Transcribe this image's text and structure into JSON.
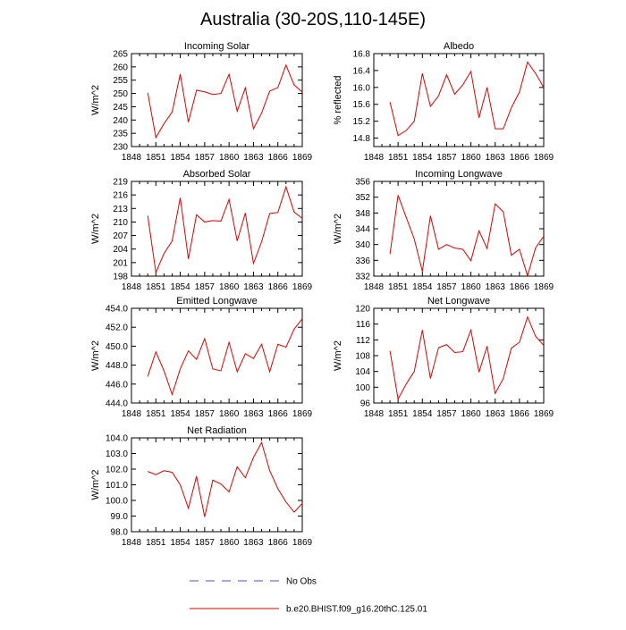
{
  "figure": {
    "title": "Australia (30-20S,110-145E)"
  },
  "legend": {
    "entries": [
      {
        "label": "No Obs",
        "color": "#5050c8",
        "dash": true
      },
      {
        "label": "b.e20.BHIST.f09_g16.20thC.125.01",
        "color": "#e00000",
        "dash": false
      }
    ]
  },
  "chart_data": [
    {
      "type": "line",
      "title": "Incoming Solar",
      "ylabel": "W/m^2",
      "xlim": [
        1848,
        1869
      ],
      "xticks": [
        1848,
        1851,
        1854,
        1857,
        1860,
        1863,
        1866,
        1869
      ],
      "ylim": [
        230,
        265
      ],
      "yticks": [
        230,
        235,
        240,
        245,
        250,
        255,
        260,
        265
      ],
      "ytick_labels": [
        "230",
        "235",
        "240",
        "245",
        "250",
        "255",
        "260",
        "265"
      ],
      "series": [
        {
          "color": "#e00000",
          "x": [
            1850,
            1851,
            1852,
            1853,
            1854,
            1855,
            1856,
            1857,
            1858,
            1859,
            1860,
            1861,
            1862,
            1863,
            1864,
            1865,
            1866,
            1867,
            1868,
            1869
          ],
          "y": [
            250.3,
            233.4,
            238.6,
            243.0,
            257.3,
            239.2,
            251.2,
            250.6,
            249.6,
            250.0,
            257.2,
            243.3,
            252.1,
            236.7,
            242.6,
            250.9,
            252.2,
            260.7,
            253.2,
            250.5
          ]
        }
      ]
    },
    {
      "type": "line",
      "title": "Albedo",
      "ylabel": "% reflected",
      "xlim": [
        1848,
        1869
      ],
      "xticks": [
        1848,
        1851,
        1854,
        1857,
        1860,
        1863,
        1866,
        1869
      ],
      "ylim": [
        14.6,
        16.8
      ],
      "yticks": [
        14.8,
        15.2,
        15.6,
        16.0,
        16.4,
        16.8
      ],
      "ytick_labels": [
        "14.8",
        "15.2",
        "15.6",
        "16.0",
        "16.4",
        "16.8"
      ],
      "series": [
        {
          "color": "#e00000",
          "x": [
            1850,
            1851,
            1852,
            1853,
            1854,
            1855,
            1856,
            1857,
            1858,
            1859,
            1860,
            1861,
            1862,
            1863,
            1864,
            1865,
            1866,
            1867,
            1868,
            1869
          ],
          "y": [
            15.65,
            14.86,
            14.98,
            15.2,
            16.33,
            15.55,
            15.8,
            16.3,
            15.84,
            16.06,
            16.38,
            15.28,
            16.0,
            15.02,
            15.02,
            15.52,
            15.89,
            16.6,
            16.33,
            16.0
          ]
        }
      ]
    },
    {
      "type": "line",
      "title": "Absorbed Solar",
      "ylabel": "W/m^2",
      "xlim": [
        1848,
        1869
      ],
      "xticks": [
        1848,
        1851,
        1854,
        1857,
        1860,
        1863,
        1866,
        1869
      ],
      "ylim": [
        198,
        219
      ],
      "yticks": [
        198,
        201,
        204,
        207,
        210,
        213,
        216,
        219
      ],
      "ytick_labels": [
        "198",
        "201",
        "204",
        "207",
        "210",
        "213",
        "216",
        "219"
      ],
      "series": [
        {
          "color": "#e00000",
          "x": [
            1850,
            1851,
            1852,
            1853,
            1854,
            1855,
            1856,
            1857,
            1858,
            1859,
            1860,
            1861,
            1862,
            1863,
            1864,
            1865,
            1866,
            1867,
            1868,
            1869
          ],
          "y": [
            211.4,
            198.8,
            203.0,
            205.8,
            215.4,
            201.8,
            211.6,
            210.0,
            210.3,
            210.2,
            215.0,
            205.8,
            212.0,
            200.8,
            205.6,
            211.9,
            212.1,
            217.8,
            212.2,
            210.8
          ]
        }
      ]
    },
    {
      "type": "line",
      "title": "Incoming Longwave",
      "ylabel": "W/m^2",
      "xlim": [
        1848,
        1869
      ],
      "xticks": [
        1848,
        1851,
        1854,
        1857,
        1860,
        1863,
        1866,
        1869
      ],
      "ylim": [
        332,
        356
      ],
      "yticks": [
        332,
        336,
        340,
        344,
        348,
        352,
        356
      ],
      "ytick_labels": [
        "332",
        "336",
        "340",
        "344",
        "348",
        "352",
        "356"
      ],
      "series": [
        {
          "color": "#e00000",
          "x": [
            1850,
            1851,
            1852,
            1853,
            1854,
            1855,
            1856,
            1857,
            1858,
            1859,
            1860,
            1861,
            1862,
            1863,
            1864,
            1865,
            1866,
            1867,
            1868,
            1869
          ],
          "y": [
            337.6,
            352.5,
            346.9,
            341.4,
            333.2,
            347.3,
            338.8,
            340.0,
            339.1,
            338.8,
            335.9,
            343.5,
            339.0,
            350.3,
            348.3,
            337.3,
            338.8,
            332.1,
            339.2,
            342.1
          ]
        }
      ]
    },
    {
      "type": "line",
      "title": "Emitted Longwave",
      "ylabel": "W/m^2",
      "xlim": [
        1848,
        1869
      ],
      "xticks": [
        1848,
        1851,
        1854,
        1857,
        1860,
        1863,
        1866,
        1869
      ],
      "ylim": [
        444.0,
        454.0
      ],
      "yticks": [
        444.0,
        446.0,
        448.0,
        450.0,
        452.0,
        454.0
      ],
      "ytick_labels": [
        "444.0",
        "446.0",
        "448.0",
        "450.0",
        "452.0",
        "454.0"
      ],
      "series": [
        {
          "color": "#e00000",
          "x": [
            1850,
            1851,
            1852,
            1853,
            1854,
            1855,
            1856,
            1857,
            1858,
            1859,
            1860,
            1861,
            1862,
            1863,
            1864,
            1865,
            1866,
            1867,
            1868,
            1869
          ],
          "y": [
            446.8,
            449.4,
            447.4,
            444.9,
            447.6,
            449.5,
            448.6,
            450.8,
            447.6,
            447.4,
            450.4,
            447.3,
            449.2,
            448.7,
            450.2,
            447.3,
            450.2,
            449.9,
            451.8,
            452.9
          ]
        }
      ]
    },
    {
      "type": "line",
      "title": "Net Longwave",
      "ylabel": "W/m^2",
      "xlim": [
        1848,
        1869
      ],
      "xticks": [
        1848,
        1851,
        1854,
        1857,
        1860,
        1863,
        1866,
        1869
      ],
      "ylim": [
        96,
        120
      ],
      "yticks": [
        96,
        100,
        104,
        108,
        112,
        116,
        120
      ],
      "ytick_labels": [
        "96",
        "100",
        "104",
        "108",
        "112",
        "116",
        "120"
      ],
      "series": [
        {
          "color": "#e00000",
          "x": [
            1850,
            1851,
            1852,
            1853,
            1854,
            1855,
            1856,
            1857,
            1858,
            1859,
            1860,
            1861,
            1862,
            1863,
            1864,
            1865,
            1866,
            1867,
            1868,
            1869
          ],
          "y": [
            109.2,
            97.0,
            100.8,
            104.0,
            114.5,
            102.2,
            110.0,
            110.8,
            108.8,
            109.0,
            114.5,
            103.8,
            110.4,
            98.4,
            102.2,
            109.9,
            111.4,
            117.8,
            112.9,
            110.6
          ]
        }
      ]
    },
    {
      "type": "line",
      "title": "Net Radiation",
      "ylabel": "W/m^2",
      "xlim": [
        1848,
        1869
      ],
      "xticks": [
        1848,
        1851,
        1854,
        1857,
        1860,
        1863,
        1866,
        1869
      ],
      "ylim": [
        98.0,
        104.0
      ],
      "yticks": [
        98.0,
        99.0,
        100.0,
        101.0,
        102.0,
        103.0,
        104.0
      ],
      "ytick_labels": [
        "98.0",
        "99.0",
        "100.0",
        "101.0",
        "102.0",
        "103.0",
        "104.0"
      ],
      "series": [
        {
          "color": "#e00000",
          "x": [
            1850,
            1851,
            1852,
            1853,
            1854,
            1855,
            1856,
            1857,
            1858,
            1859,
            1860,
            1861,
            1862,
            1863,
            1864,
            1865,
            1866,
            1867,
            1868,
            1869
          ],
          "y": [
            101.85,
            101.65,
            101.9,
            101.8,
            101.0,
            99.5,
            101.55,
            98.95,
            101.3,
            101.05,
            100.55,
            102.15,
            101.45,
            102.75,
            103.7,
            101.9,
            100.75,
            99.9,
            99.25,
            99.8
          ]
        }
      ]
    }
  ]
}
